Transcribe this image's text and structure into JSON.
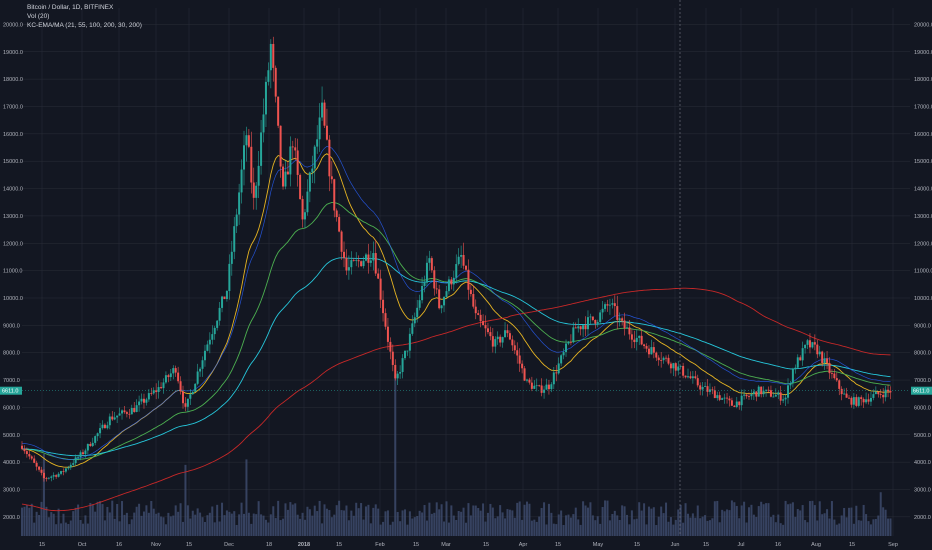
{
  "legend": {
    "line1": "Bitcoin / Dollar, 1D, BITFINEX",
    "line2": "Vol (20)",
    "line3": "KC-EMA/MA (21, 55, 100, 200, 30, 200)"
  },
  "colors": {
    "background": "#131722",
    "grid": "#2a2e39",
    "up": "#26a69a",
    "down": "#ef5350",
    "volume": "#3d4a6b",
    "ma21": "#e6b422",
    "ma55": "#4caf50",
    "ma100": "#26c6da",
    "ma200": "#c62828",
    "channel": "#2962ff",
    "crosshair": "#787b86"
  },
  "chart_data": {
    "type": "candlestick",
    "symbol": "Bitcoin / Dollar",
    "interval": "1D",
    "exchange": "BITFINEX",
    "y_ticks": [
      "20000.0",
      "19000.0",
      "18000.0",
      "17000.0",
      "16000.0",
      "15000.0",
      "14000.0",
      "13000.0",
      "12000.0",
      "11000.0",
      "10000.0",
      "9000.0",
      "8000.0",
      "7000.0",
      "6000.0",
      "5000.0",
      "4000.0",
      "3000.0",
      "2000.0"
    ],
    "x_ticks": [
      "15",
      "Oct",
      "16",
      "Nov",
      "15",
      "Dec",
      "18",
      "2018",
      "15",
      "Feb",
      "15",
      "Mar",
      "15",
      "Apr",
      "15",
      "May",
      "15",
      "Jun",
      "15",
      "Jul",
      "16",
      "Aug",
      "15",
      "Sep"
    ],
    "ylim": [
      1300,
      20600
    ],
    "x_range": [
      "2017-09-06",
      "2018-09-05"
    ],
    "last_price": "6611.0",
    "last_price_value": 6611,
    "anchors": [
      [
        "2017-09-06",
        4600
      ],
      [
        "2017-09-15",
        3400
      ],
      [
        "2017-09-22",
        3600
      ],
      [
        "2017-10-01",
        4350
      ],
      [
        "2017-10-12",
        5600
      ],
      [
        "2017-10-22",
        5950
      ],
      [
        "2017-11-01",
        6700
      ],
      [
        "2017-11-08",
        7450
      ],
      [
        "2017-11-12",
        5900
      ],
      [
        "2017-11-20",
        8100
      ],
      [
        "2017-11-29",
        10300
      ],
      [
        "2017-12-07",
        16000
      ],
      [
        "2017-12-10",
        13500
      ],
      [
        "2017-12-17",
        19200
      ],
      [
        "2017-12-22",
        13800
      ],
      [
        "2017-12-26",
        15800
      ],
      [
        "2017-12-30",
        12800
      ],
      [
        "2018-01-07",
        16800
      ],
      [
        "2018-01-12",
        13400
      ],
      [
        "2018-01-17",
        11000
      ],
      [
        "2018-01-28",
        11700
      ],
      [
        "2018-02-06",
        6900
      ],
      [
        "2018-02-11",
        8200
      ],
      [
        "2018-02-20",
        11400
      ],
      [
        "2018-02-24",
        9700
      ],
      [
        "2018-03-05",
        11500
      ],
      [
        "2018-03-11",
        9300
      ],
      [
        "2018-03-19",
        8300
      ],
      [
        "2018-03-24",
        8800
      ],
      [
        "2018-04-01",
        6900
      ],
      [
        "2018-04-06",
        6650
      ],
      [
        "2018-04-10",
        6800
      ],
      [
        "2018-04-21",
        8900
      ],
      [
        "2018-04-30",
        9300
      ],
      [
        "2018-05-05",
        9800
      ],
      [
        "2018-05-10",
        9000
      ],
      [
        "2018-05-20",
        8200
      ],
      [
        "2018-06-01",
        7500
      ],
      [
        "2018-06-12",
        6700
      ],
      [
        "2018-06-17",
        6500
      ],
      [
        "2018-06-24",
        6100
      ],
      [
        "2018-07-05",
        6600
      ],
      [
        "2018-07-16",
        6350
      ],
      [
        "2018-07-19",
        7400
      ],
      [
        "2018-07-25",
        8300
      ],
      [
        "2018-07-29",
        8100
      ],
      [
        "2018-08-05",
        7000
      ],
      [
        "2018-08-10",
        6300
      ],
      [
        "2018-08-14",
        6200
      ],
      [
        "2018-08-22",
        6450
      ],
      [
        "2018-08-28",
        6611
      ]
    ],
    "volume_spikes": [
      [
        "2017-09-15",
        4300
      ],
      [
        "2017-11-12",
        3900
      ],
      [
        "2017-12-07",
        4100
      ],
      [
        "2018-02-06",
        7200
      ],
      [
        "2018-06-24",
        2600
      ],
      [
        "2018-08-24",
        2900
      ]
    ],
    "series": [
      {
        "name": "21",
        "type": "line"
      },
      {
        "name": "55",
        "type": "line"
      },
      {
        "name": "100",
        "type": "line"
      },
      {
        "name": "200",
        "type": "line"
      }
    ]
  }
}
